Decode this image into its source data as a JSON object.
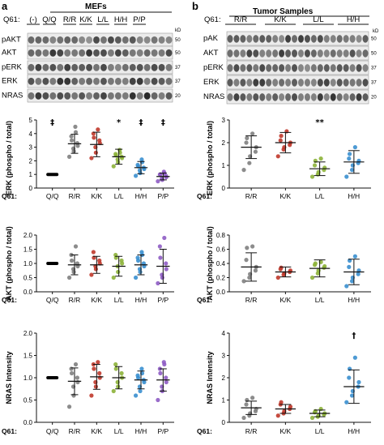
{
  "panel_a": {
    "letter": "a",
    "title": "MEFs",
    "q61_label": "Q61:",
    "lane_groups": [
      "(-)",
      "Q/Q",
      "R/R",
      "K/K",
      "L/L",
      "H/H",
      "P/P"
    ],
    "blot_labels": [
      "pAKT",
      "AKT",
      "pERK",
      "ERK",
      "NRAS"
    ],
    "kd_label": "kD",
    "mw_markers": [
      "50",
      "50",
      "37",
      "37",
      "20"
    ]
  },
  "panel_b": {
    "letter": "b",
    "title": "Tumor Samples",
    "q61_label": "Q61:",
    "lane_groups": [
      "R/R",
      "K/K",
      "L/L",
      "H/H"
    ],
    "blot_labels": [
      "pAK",
      "AKT",
      "pERK",
      "ERK",
      "NRAS"
    ],
    "kd_label": "kD",
    "mw_markers": [
      "50",
      "50",
      "37",
      "37",
      "20"
    ]
  },
  "colors": {
    "Q/Q": "#000000",
    "R/R": "#7f7f7f",
    "K/K": "#c0392b",
    "L/L": "#8db33a",
    "H/H": "#3a8fcf",
    "P/P": "#8e5cc4"
  },
  "chart_data": [
    {
      "id": "a-erk",
      "type": "scatter",
      "ylabel": "ERK (phospho / total)",
      "xlabel": "Q61:",
      "categories": [
        "Q/Q",
        "R/R",
        "K/K",
        "L/L",
        "H/H",
        "P/P"
      ],
      "ylim": [
        0,
        5
      ],
      "yticks": [
        0,
        1,
        2,
        3,
        4,
        5
      ],
      "annotations": [
        "‡",
        "",
        "",
        "*",
        "‡",
        "‡"
      ],
      "points": [
        [
          1,
          1,
          1,
          1,
          1,
          1,
          1,
          1,
          1,
          1
        ],
        [
          2.3,
          2.7,
          2.9,
          3.1,
          3.3,
          3.5,
          3.8,
          4.1,
          4.5
        ],
        [
          2.2,
          2.6,
          3.0,
          3.3,
          3.5,
          3.7,
          4.0,
          4.3
        ],
        [
          1.6,
          1.9,
          2.1,
          2.2,
          2.3,
          2.4,
          2.5,
          2.6,
          2.8
        ],
        [
          0.9,
          1.1,
          1.3,
          1.4,
          1.5,
          1.6,
          1.7,
          1.9,
          2.1
        ],
        [
          0.5,
          0.6,
          0.7,
          0.8,
          0.9,
          1.0,
          1.0,
          1.1,
          1.2
        ]
      ],
      "means": [
        1.0,
        3.25,
        3.2,
        2.3,
        1.5,
        0.85
      ],
      "err": [
        0.0,
        0.7,
        0.9,
        0.55,
        0.45,
        0.25
      ]
    },
    {
      "id": "b-erk",
      "type": "scatter",
      "ylabel": "ERK (phospho / total)",
      "xlabel": "Q61:",
      "categories": [
        "R/R",
        "K/K",
        "L/L",
        "H/H"
      ],
      "ylim": [
        0,
        3
      ],
      "yticks": [
        0,
        1,
        2,
        3
      ],
      "annotations": [
        "",
        "",
        "**",
        ""
      ],
      "points": [
        [
          0.8,
          1.1,
          1.4,
          1.6,
          1.8,
          2.0,
          2.2,
          2.4
        ],
        [
          1.4,
          1.7,
          1.8,
          1.9,
          2.0,
          2.1,
          2.3,
          2.5
        ],
        [
          0.5,
          0.6,
          0.7,
          0.8,
          0.9,
          1.0,
          1.2,
          1.3
        ],
        [
          0.5,
          0.8,
          1.0,
          1.1,
          1.2,
          1.3,
          1.5,
          1.8
        ]
      ],
      "means": [
        1.8,
        2.0,
        0.85,
        1.15
      ],
      "err": [
        0.5,
        0.45,
        0.3,
        0.5
      ]
    },
    {
      "id": "a-akt",
      "type": "scatter",
      "ylabel": "AKT (phospho / total)",
      "xlabel": "Q61:",
      "categories": [
        "Q/Q",
        "R/R",
        "K/K",
        "L/L",
        "H/H",
        "P/P"
      ],
      "ylim": [
        0,
        2
      ],
      "yticks": [
        0,
        0.5,
        1.0,
        1.5,
        2.0
      ],
      "annotations": [
        "",
        "",
        "",
        "",
        "",
        ""
      ],
      "points": [
        [
          1,
          1,
          1,
          1,
          1,
          1,
          1,
          1,
          1,
          1
        ],
        [
          0.5,
          0.7,
          0.8,
          0.9,
          1.0,
          1.1,
          1.3,
          1.6
        ],
        [
          0.6,
          0.8,
          0.9,
          1.0,
          1.1,
          1.2,
          1.4
        ],
        [
          0.5,
          0.7,
          0.9,
          1.0,
          1.1,
          1.2,
          1.3
        ],
        [
          0.5,
          0.7,
          0.8,
          0.9,
          1.0,
          1.1,
          1.2,
          1.3,
          1.4
        ],
        [
          0.3,
          0.5,
          0.6,
          0.8,
          1.0,
          1.2,
          1.6,
          1.9
        ]
      ],
      "means": [
        1.0,
        0.95,
        0.95,
        0.9,
        0.95,
        0.9
      ],
      "err": [
        0.0,
        0.35,
        0.3,
        0.35,
        0.35,
        0.6
      ]
    },
    {
      "id": "b-akt",
      "type": "scatter",
      "ylabel": "AKT (phospho / total)",
      "xlabel": "Q61:",
      "categories": [
        "R/R",
        "K/K",
        "L/L",
        "H/H"
      ],
      "ylim": [
        0,
        0.8
      ],
      "yticks": [
        0,
        0.2,
        0.4,
        0.6,
        0.8
      ],
      "annotations": [
        "",
        "",
        "",
        ""
      ],
      "points": [
        [
          0.15,
          0.2,
          0.25,
          0.3,
          0.35,
          0.45,
          0.62,
          0.64
        ],
        [
          0.2,
          0.24,
          0.26,
          0.28,
          0.3,
          0.32,
          0.34
        ],
        [
          0.2,
          0.26,
          0.3,
          0.34,
          0.36,
          0.38,
          0.4,
          0.42
        ],
        [
          0.08,
          0.15,
          0.2,
          0.25,
          0.3,
          0.35,
          0.44,
          0.5
        ]
      ],
      "means": [
        0.35,
        0.28,
        0.33,
        0.28
      ],
      "err": [
        0.2,
        0.07,
        0.12,
        0.18
      ]
    },
    {
      "id": "a-nras",
      "type": "scatter",
      "ylabel": "NRAS Intensity",
      "xlabel": "Q61:",
      "categories": [
        "Q/Q",
        "R/R",
        "K/K",
        "L/L",
        "H/H",
        "P/P"
      ],
      "ylim": [
        0,
        2
      ],
      "yticks": [
        0,
        0.5,
        1.0,
        1.5,
        2.0
      ],
      "annotations": [
        "",
        "",
        "",
        "",
        "",
        ""
      ],
      "points": [
        [
          1,
          1,
          1,
          1,
          1,
          1,
          1,
          1,
          1,
          1
        ],
        [
          0.35,
          0.6,
          0.8,
          0.9,
          1.0,
          1.1,
          1.2,
          1.3
        ],
        [
          0.6,
          0.8,
          0.9,
          1.0,
          1.1,
          1.2,
          1.3,
          1.35
        ],
        [
          0.7,
          0.8,
          0.9,
          1.0,
          1.1,
          1.2,
          1.3
        ],
        [
          0.6,
          0.7,
          0.8,
          0.9,
          0.95,
          1.0,
          1.05,
          1.1,
          1.2
        ],
        [
          0.5,
          0.7,
          0.8,
          0.9,
          1.0,
          1.1,
          1.2,
          1.3,
          1.35
        ]
      ],
      "means": [
        1.0,
        0.92,
        1.02,
        1.0,
        0.95,
        0.95
      ],
      "err": [
        0.0,
        0.3,
        0.28,
        0.25,
        0.2,
        0.25
      ]
    },
    {
      "id": "b-nras",
      "type": "scatter",
      "ylabel": "NRAS Intensity",
      "xlabel": "Q61:",
      "categories": [
        "R/R",
        "K/K",
        "L/L",
        "H/H"
      ],
      "ylim": [
        0,
        4
      ],
      "yticks": [
        0,
        1,
        2,
        3,
        4
      ],
      "annotations": [
        "",
        "",
        "",
        "†"
      ],
      "points": [
        [
          0.2,
          0.3,
          0.4,
          0.5,
          0.6,
          0.8,
          1.0,
          1.1
        ],
        [
          0.3,
          0.4,
          0.5,
          0.6,
          0.7,
          0.8,
          0.9
        ],
        [
          0.2,
          0.25,
          0.3,
          0.35,
          0.4,
          0.45,
          0.5,
          0.6
        ],
        [
          0.9,
          1.2,
          1.4,
          1.6,
          1.8,
          2.0,
          2.4,
          2.9
        ]
      ],
      "means": [
        0.65,
        0.6,
        0.4,
        1.6
      ],
      "err": [
        0.3,
        0.2,
        0.15,
        0.75
      ]
    }
  ]
}
